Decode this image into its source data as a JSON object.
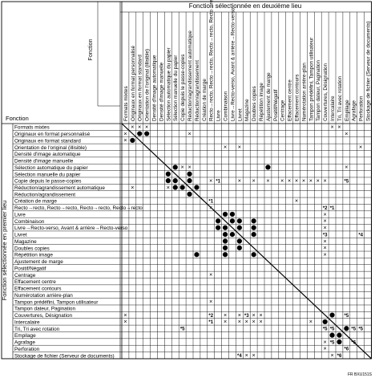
{
  "header": {
    "top_title": "Fonction sélectionnée en deuxième lieu",
    "side_title": "Fonction sélectionnée en premier lieu",
    "corner_top_label": "Fonction",
    "corner_row_label": "Fonction"
  },
  "functions": [
    "Formats mixtes",
    "Originaux en format personnalisé",
    "Originaux en format standard",
    "Orientation de l'original (illisible)",
    "Densité d'image automatique",
    "Densité d'image manuelle",
    "Sélection automatique du papier",
    "Sélection manuelle du papier",
    "Copie depuis le passe-copies",
    "Réduction/agrandissement automatique",
    "Réduction/agrandissement",
    "Création de marge",
    "Recto→recto, Recto→recto, Recto→recto, Recto→recto",
    "Livre",
    "Combinaison",
    "Livre→Recto-verso, Avant & arrière→Recto-verso",
    "Livret",
    "Magazine",
    "Doubles copies",
    "Répétition image",
    "Ajustement de marge",
    "Positif/Négatif",
    "Centrage",
    "Effacement centre",
    "Effacement contours",
    "Numérotation arrière-plan",
    "Tampon prédéfini, Tampon utilisateur",
    "Tampon dateur, Pagination",
    "Couvertures, Désignation",
    "Intercalaire",
    "Tri, Tri avec rotation",
    "Empilage",
    "Agrafage",
    "Perforation",
    "Stockage de fichier (Serveur de documents)"
  ],
  "cells": [
    {
      "r": 0,
      "c": 1,
      "v": "×"
    },
    {
      "r": 0,
      "c": 2,
      "v": "×"
    },
    {
      "r": 0,
      "c": 3,
      "v": "×"
    },
    {
      "r": 0,
      "c": 29,
      "v": "×"
    },
    {
      "r": 0,
      "c": 30,
      "v": "×"
    },
    {
      "r": 1,
      "c": 0,
      "v": "×"
    },
    {
      "r": 1,
      "c": 2,
      "v": "●"
    },
    {
      "r": 1,
      "c": 3,
      "v": "●"
    },
    {
      "r": 1,
      "c": 9,
      "v": "×"
    },
    {
      "r": 1,
      "c": 31,
      "v": "×"
    },
    {
      "r": 2,
      "c": 0,
      "v": "×"
    },
    {
      "r": 2,
      "c": 1,
      "v": "●"
    },
    {
      "r": 3,
      "c": 14,
      "v": "×"
    },
    {
      "r": 3,
      "c": 16,
      "v": "×"
    },
    {
      "r": 3,
      "c": 33,
      "v": "×"
    },
    {
      "r": 6,
      "c": 7,
      "v": "●"
    },
    {
      "r": 6,
      "c": 8,
      "v": "×"
    },
    {
      "r": 6,
      "c": 9,
      "v": "×"
    },
    {
      "r": 6,
      "c": 20,
      "v": "●"
    },
    {
      "r": 6,
      "c": 31,
      "v": "×"
    },
    {
      "r": 7,
      "c": 6,
      "v": "●"
    },
    {
      "r": 7,
      "c": 9,
      "v": "●"
    },
    {
      "r": 8,
      "c": 6,
      "v": "●"
    },
    {
      "r": 8,
      "c": 7,
      "v": "●"
    },
    {
      "r": 8,
      "c": 9,
      "v": "●"
    },
    {
      "r": 8,
      "c": 12,
      "v": "×"
    },
    {
      "r": 8,
      "c": 13,
      "v": "*1"
    },
    {
      "r": 8,
      "c": 16,
      "v": "×"
    },
    {
      "r": 8,
      "c": 18,
      "v": "×"
    },
    {
      "r": 8,
      "c": 20,
      "v": "×"
    },
    {
      "r": 8,
      "c": 22,
      "v": "×"
    },
    {
      "r": 8,
      "c": 23,
      "v": "×"
    },
    {
      "r": 8,
      "c": 24,
      "v": "×"
    },
    {
      "r": 8,
      "c": 25,
      "v": "×"
    },
    {
      "r": 8,
      "c": 26,
      "v": "×"
    },
    {
      "r": 8,
      "c": 27,
      "v": "×"
    },
    {
      "r": 8,
      "c": 28,
      "v": "×"
    },
    {
      "r": 8,
      "c": 31,
      "v": "*5"
    },
    {
      "r": 9,
      "c": 1,
      "v": "×"
    },
    {
      "r": 9,
      "c": 6,
      "v": "×"
    },
    {
      "r": 9,
      "c": 7,
      "v": "●"
    },
    {
      "r": 9,
      "c": 8,
      "v": "●"
    },
    {
      "r": 9,
      "c": 10,
      "v": "●"
    },
    {
      "r": 10,
      "c": 9,
      "v": "●"
    },
    {
      "r": 11,
      "c": 12,
      "v": "*1"
    },
    {
      "r": 11,
      "c": 24,
      "v": "×"
    },
    {
      "r": 12,
      "c": 12,
      "v": "×"
    },
    {
      "r": 12,
      "c": 28,
      "v": "*2"
    },
    {
      "r": 12,
      "c": 29,
      "v": "*1"
    },
    {
      "r": 13,
      "c": 14,
      "v": "●"
    },
    {
      "r": 13,
      "c": 15,
      "v": "●"
    },
    {
      "r": 13,
      "c": 28,
      "v": "×"
    },
    {
      "r": 14,
      "c": 13,
      "v": "●"
    },
    {
      "r": 14,
      "c": 15,
      "v": "●"
    },
    {
      "r": 14,
      "c": 16,
      "v": "●"
    },
    {
      "r": 14,
      "c": 18,
      "v": "●"
    },
    {
      "r": 14,
      "c": 28,
      "v": "×"
    },
    {
      "r": 15,
      "c": 13,
      "v": "●"
    },
    {
      "r": 15,
      "c": 14,
      "v": "●"
    },
    {
      "r": 15,
      "c": 16,
      "v": "●"
    },
    {
      "r": 15,
      "c": 18,
      "v": "●"
    },
    {
      "r": 15,
      "c": 28,
      "v": "×"
    },
    {
      "r": 16,
      "c": 14,
      "v": "●"
    },
    {
      "r": 16,
      "c": 15,
      "v": "●"
    },
    {
      "r": 16,
      "c": 18,
      "v": "●"
    },
    {
      "r": 16,
      "c": 28,
      "v": "*3"
    },
    {
      "r": 16,
      "c": 33,
      "v": "*4"
    },
    {
      "r": 17,
      "c": 14,
      "v": "●"
    },
    {
      "r": 17,
      "c": 16,
      "v": "●"
    },
    {
      "r": 17,
      "c": 28,
      "v": "×"
    },
    {
      "r": 18,
      "c": 14,
      "v": "●"
    },
    {
      "r": 18,
      "c": 16,
      "v": "●"
    },
    {
      "r": 18,
      "c": 28,
      "v": "×"
    },
    {
      "r": 19,
      "c": 10,
      "v": "●"
    },
    {
      "r": 19,
      "c": 14,
      "v": "●"
    },
    {
      "r": 19,
      "c": 18,
      "v": "●"
    },
    {
      "r": 19,
      "c": 28,
      "v": "×"
    },
    {
      "r": 22,
      "c": 12,
      "v": "×"
    },
    {
      "r": 26,
      "c": 12,
      "v": "×"
    },
    {
      "r": 28,
      "c": 0,
      "v": "×"
    },
    {
      "r": 28,
      "c": 12,
      "v": "*2"
    },
    {
      "r": 28,
      "c": 14,
      "v": "×"
    },
    {
      "r": 28,
      "c": 16,
      "v": "×"
    },
    {
      "r": 28,
      "c": 17,
      "v": "*3"
    },
    {
      "r": 28,
      "c": 18,
      "v": "×"
    },
    {
      "r": 28,
      "c": 19,
      "v": "×"
    },
    {
      "r": 28,
      "c": 29,
      "v": "●"
    },
    {
      "r": 28,
      "c": 31,
      "v": "*5"
    },
    {
      "r": 29,
      "c": 0,
      "v": "×"
    },
    {
      "r": 29,
      "c": 12,
      "v": "*1"
    },
    {
      "r": 29,
      "c": 14,
      "v": "×"
    },
    {
      "r": 29,
      "c": 16,
      "v": "×"
    },
    {
      "r": 29,
      "c": 17,
      "v": "×"
    },
    {
      "r": 29,
      "c": 18,
      "v": "×"
    },
    {
      "r": 29,
      "c": 19,
      "v": "×"
    },
    {
      "r": 29,
      "c": 26,
      "v": "×"
    },
    {
      "r": 29,
      "c": 28,
      "v": "●"
    },
    {
      "r": 30,
      "c": 8,
      "v": "*5"
    },
    {
      "r": 30,
      "c": 28,
      "v": "*5"
    },
    {
      "r": 30,
      "c": 29,
      "v": "*5"
    },
    {
      "r": 30,
      "c": 31,
      "v": "●"
    },
    {
      "r": 30,
      "c": 32,
      "v": "*5"
    },
    {
      "r": 30,
      "c": 33,
      "v": "*5"
    },
    {
      "r": 31,
      "c": 29,
      "v": "●"
    },
    {
      "r": 31,
      "c": 30,
      "v": "●"
    },
    {
      "r": 32,
      "c": 28,
      "v": "×"
    },
    {
      "r": 32,
      "c": 29,
      "v": "*5"
    },
    {
      "r": 32,
      "c": 30,
      "v": "●"
    },
    {
      "r": 32,
      "c": 32,
      "v": "*6"
    },
    {
      "r": 33,
      "c": 28,
      "v": "×"
    },
    {
      "r": 33,
      "c": 31,
      "v": "*6"
    },
    {
      "r": 34,
      "c": 16,
      "v": "*4"
    },
    {
      "r": 34,
      "c": 17,
      "v": "×"
    },
    {
      "r": 34,
      "c": 18,
      "v": "×"
    },
    {
      "r": 34,
      "c": 29,
      "v": "×"
    },
    {
      "r": 34,
      "c": 30,
      "v": "*6"
    }
  ],
  "footer_code": "FR BXU151S"
}
